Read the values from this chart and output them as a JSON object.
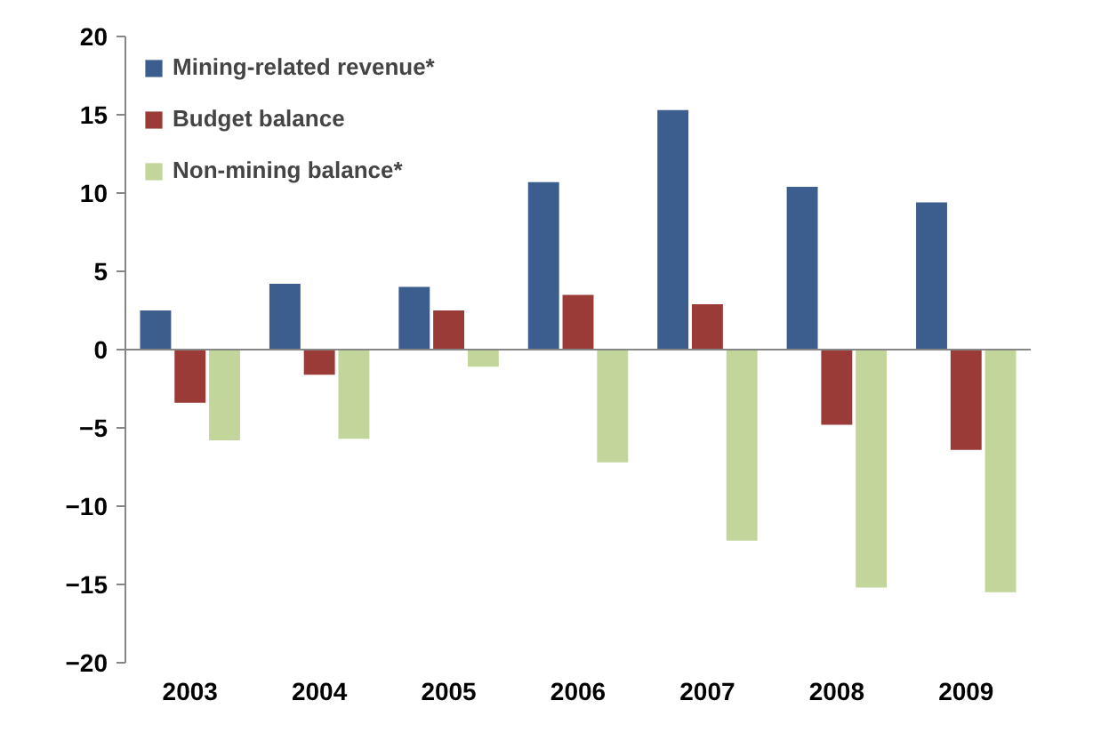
{
  "chart_data": {
    "type": "bar",
    "categories": [
      "2003",
      "2004",
      "2005",
      "2006",
      "2007",
      "2008",
      "2009"
    ],
    "series": [
      {
        "name": "Mining-related revenue*",
        "color": "#3b5e8e",
        "values": [
          2.5,
          4.2,
          4.0,
          10.7,
          15.3,
          10.4,
          9.4
        ]
      },
      {
        "name": "Budget balance",
        "color": "#9b3b38",
        "values": [
          -3.4,
          -1.6,
          2.5,
          3.5,
          2.9,
          -4.8,
          -6.4
        ]
      },
      {
        "name": "Non-mining balance*",
        "color": "#c2d69b",
        "values": [
          -5.8,
          -5.7,
          -1.1,
          -7.2,
          -12.2,
          -15.2,
          -15.5
        ]
      }
    ],
    "ylim": [
      -20,
      20
    ],
    "yticks": [
      -20,
      -15,
      -10,
      -5,
      0,
      5,
      10,
      15,
      20
    ],
    "legend": "top left"
  }
}
